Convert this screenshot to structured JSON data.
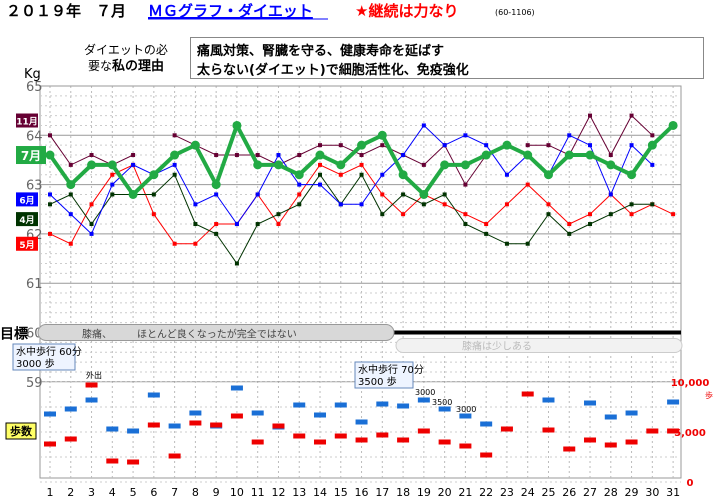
{
  "header": {
    "title_prefix": "２０１９年　７月",
    "title_link": "ＭＧグラフ・ダイエット",
    "slogan": "★継続は力なり",
    "code": "(60-1106)",
    "link_color": "#0000ff",
    "slogan_color": "#ff0000"
  },
  "reason": {
    "label_line1": "ダイエットの必",
    "label_line2a": "要な",
    "label_line2b": "私の理由",
    "line1": "痛風対策、腎臓を守る、健康寿命を延ばす",
    "line2": "太らない(ダイエット)で細胞活性化、免疫強化"
  },
  "chart_data": {
    "type": "line",
    "unit_label": "Kg",
    "x": [
      1,
      2,
      3,
      4,
      5,
      6,
      7,
      8,
      9,
      10,
      11,
      12,
      13,
      14,
      15,
      16,
      17,
      18,
      19,
      20,
      21,
      22,
      23,
      24,
      25,
      26,
      27,
      28,
      29,
      30,
      31
    ],
    "weight_axis": {
      "ticks": [
        65,
        64,
        63,
        62,
        61,
        60,
        59
      ],
      "ylim": [
        58.9,
        65
      ],
      "target": 60,
      "target_label": "目標"
    },
    "series": [
      {
        "name": "7月",
        "color": "#22aa44",
        "current": true,
        "values": [
          63.6,
          63.0,
          63.4,
          63.4,
          62.8,
          63.2,
          63.6,
          63.8,
          63.0,
          64.2,
          63.4,
          63.4,
          63.2,
          63.6,
          63.4,
          63.8,
          64.0,
          63.2,
          62.8,
          63.4,
          63.4,
          63.6,
          63.8,
          63.6,
          63.2,
          63.6,
          63.6,
          63.4,
          63.2,
          63.8,
          64.2
        ]
      },
      {
        "name": "6月",
        "color": "#0000ff",
        "values": [
          62.8,
          62.4,
          62.0,
          63.0,
          63.4,
          63.2,
          63.4,
          62.6,
          62.8,
          62.2,
          62.8,
          63.6,
          63.0,
          63.0,
          62.6,
          62.6,
          63.2,
          63.6,
          64.2,
          63.8,
          64.0,
          63.8,
          63.2,
          63.6,
          63.2,
          64.0,
          63.8,
          62.8,
          63.8,
          63.4,
          null
        ]
      },
      {
        "name": "11月",
        "color": "#660033",
        "values": [
          64.0,
          63.4,
          63.6,
          63.4,
          63.6,
          null,
          64.0,
          63.8,
          63.6,
          63.6,
          63.6,
          63.4,
          63.6,
          63.8,
          63.8,
          63.6,
          63.8,
          63.6,
          63.4,
          63.8,
          63.0,
          63.6,
          null,
          63.8,
          63.8,
          63.6,
          64.4,
          63.6,
          64.4,
          64.0,
          null
        ]
      },
      {
        "name": "4月",
        "color": "#003300",
        "values": [
          62.6,
          62.8,
          62.2,
          62.8,
          62.8,
          62.8,
          63.2,
          62.2,
          62.0,
          61.4,
          62.2,
          62.4,
          62.6,
          63.2,
          62.6,
          63.2,
          62.4,
          62.8,
          62.6,
          62.8,
          62.2,
          62.0,
          61.8,
          61.8,
          62.4,
          62.0,
          62.2,
          62.4,
          62.6,
          62.6,
          null
        ]
      },
      {
        "name": "5月",
        "color": "#ff0000",
        "values": [
          62.0,
          61.8,
          62.6,
          63.2,
          63.4,
          62.4,
          61.8,
          61.8,
          62.2,
          62.2,
          62.8,
          62.2,
          62.8,
          63.4,
          63.2,
          63.4,
          62.8,
          62.4,
          62.8,
          62.6,
          62.4,
          62.2,
          62.6,
          63.0,
          62.6,
          62.2,
          62.4,
          62.8,
          62.4,
          62.6,
          62.4
        ]
      }
    ],
    "annotations": {
      "top_note": "膝痛、　　　ほとんど良くなったが完全ではない",
      "bottom_note": "膝痛は少しある",
      "note1": "水中歩行 60分, 3000 歩",
      "note2": "水中歩行 70分, 3500 歩",
      "outing": "外出",
      "label_3000a": "3000",
      "label_3500": "3500",
      "label_3000b": "3000"
    },
    "steps_axis": {
      "label": "歩数",
      "ticks": [
        "10,000",
        "5,000",
        "0"
      ],
      "tick_values": [
        10000,
        5000,
        0
      ],
      "unit": "歩"
    },
    "steps_series": [
      {
        "name": "blue",
        "color": "#1a6fd6",
        "values": [
          6800,
          7300,
          8200,
          5300,
          5100,
          8700,
          5600,
          6900,
          5600,
          9400,
          6900,
          5500,
          7700,
          6700,
          7700,
          6000,
          7800,
          7600,
          8200,
          7300,
          6600,
          5800,
          null,
          null,
          8200,
          null,
          7900,
          6500,
          6900,
          null,
          8000
        ]
      },
      {
        "name": "red",
        "color": "#ee0000",
        "values": [
          3800,
          4300,
          9700,
          2100,
          2000,
          5700,
          2600,
          5900,
          5700,
          6600,
          4000,
          5600,
          4600,
          4000,
          4600,
          4200,
          4700,
          4200,
          5100,
          4000,
          3600,
          2700,
          5300,
          8800,
          5200,
          3300,
          4200,
          3700,
          4000,
          5100,
          5100
        ]
      }
    ]
  }
}
